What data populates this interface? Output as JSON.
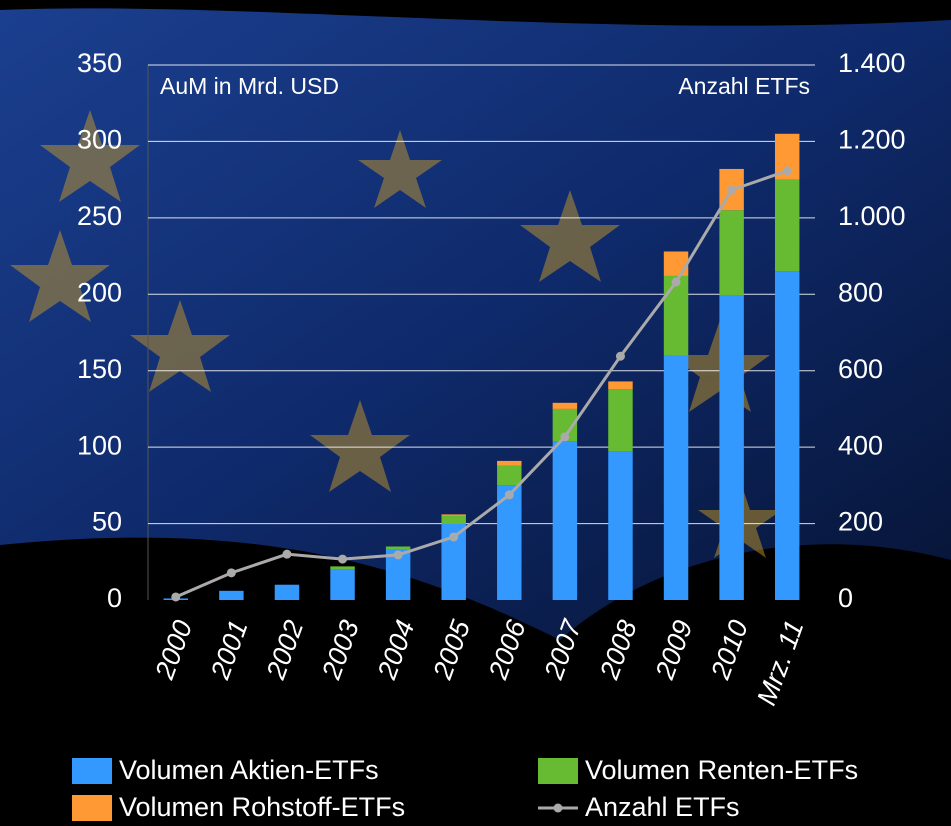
{
  "chart_data": {
    "type": "bar",
    "ylabel": "AuM in Mrd. USD",
    "y2label": "Anzahl ETFs",
    "categories": [
      "2000",
      "2001",
      "2002",
      "2003",
      "2004",
      "2005",
      "2006",
      "2007",
      "2008",
      "2009",
      "2010",
      "Mrz. 11"
    ],
    "stacked": true,
    "series": [
      {
        "name": "Volumen Aktien-ETFs",
        "color": "#3399ff",
        "values": [
          1,
          6,
          10,
          20,
          33,
          50,
          75,
          104,
          97,
          160,
          199,
          215
        ]
      },
      {
        "name": "Volumen Renten-ETFs",
        "color": "#66bb33",
        "values": [
          0,
          0,
          0,
          2,
          2,
          5,
          13,
          21,
          41,
          52,
          56,
          60
        ]
      },
      {
        "name": "Volumen Rohstoff-ETFs",
        "color": "#ff9933",
        "values": [
          0,
          0,
          0,
          0,
          0,
          1,
          3,
          4,
          5,
          16,
          27,
          30
        ]
      },
      {
        "name": "Anzahl ETFs",
        "color": "#aaaaaa",
        "type": "line",
        "axis": "y2",
        "values": [
          8,
          71,
          120,
          107,
          118,
          165,
          275,
          427,
          638,
          832,
          1073,
          1123
        ]
      }
    ],
    "ylim": [
      0,
      350
    ],
    "yticks": [
      0,
      50,
      100,
      150,
      200,
      250,
      300,
      350
    ],
    "y2lim": [
      0,
      1400
    ],
    "y2ticks": [
      0,
      200,
      400,
      600,
      800,
      {
        "value": 1000,
        "label": "1.000"
      },
      {
        "value": 1200,
        "label": "1.200"
      },
      {
        "value": 1400,
        "label": "1.400"
      }
    ],
    "grid": true,
    "legend": "bottom"
  }
}
